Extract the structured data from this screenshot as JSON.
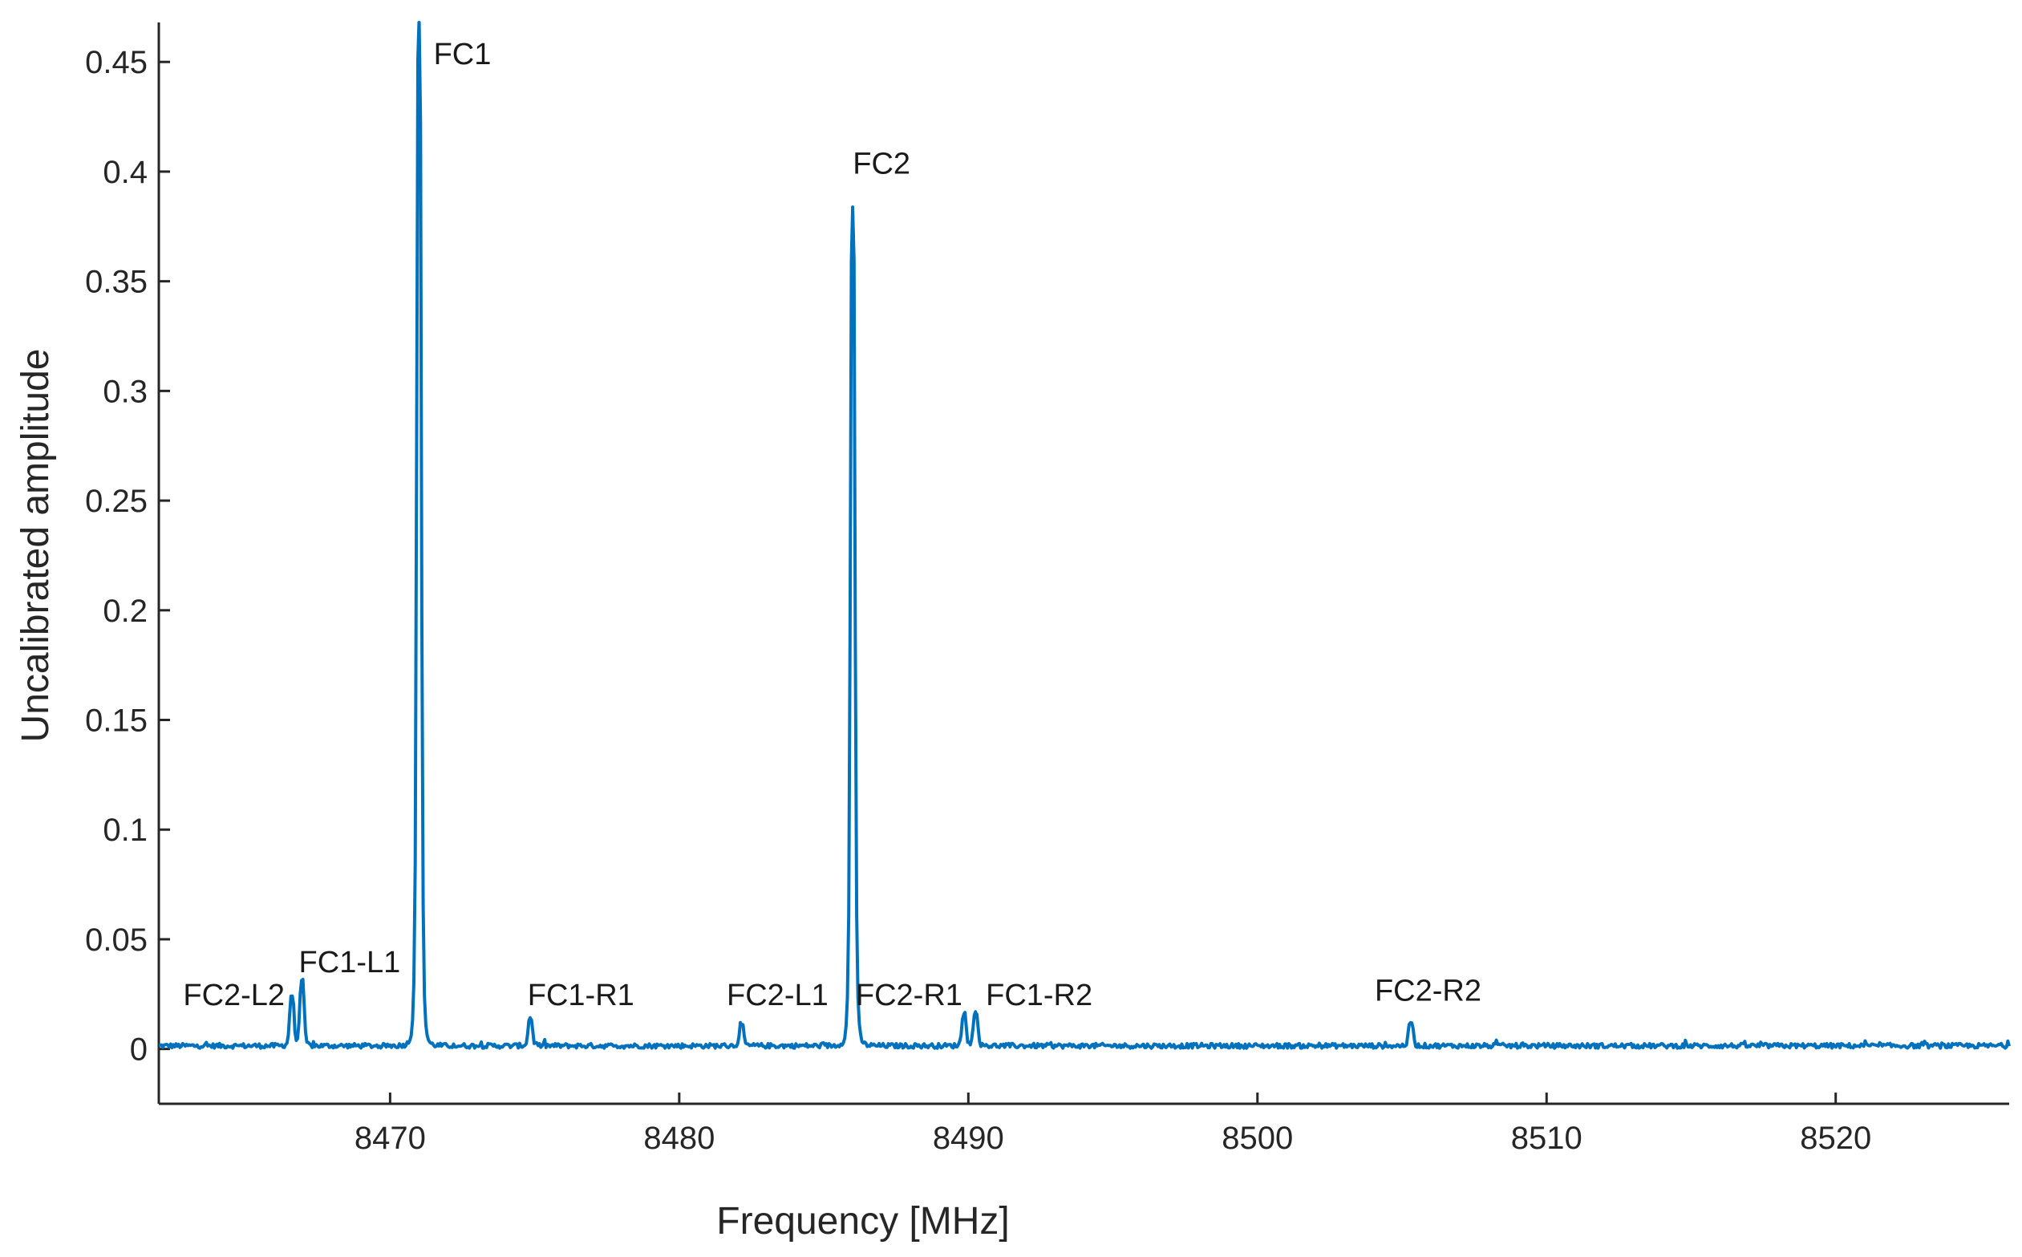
{
  "chart_data": {
    "type": "line",
    "title": "",
    "xlabel": "Frequency [MHz]",
    "ylabel": "Uncalibrated amplitude",
    "xlim": [
      8462,
      8526
    ],
    "ylim": [
      -0.025,
      0.468
    ],
    "x_ticks": [
      8470,
      8480,
      8490,
      8500,
      8510,
      8520
    ],
    "y_ticks": [
      0,
      0.05,
      0.1,
      0.15,
      0.2,
      0.25,
      0.3,
      0.35,
      0.4,
      0.45
    ],
    "x_tick_labels": [
      "8470",
      "8480",
      "8490",
      "8500",
      "8510",
      "8520"
    ],
    "y_tick_labels": [
      "0",
      "0.05",
      "0.1",
      "0.15",
      "0.2",
      "0.25",
      "0.3",
      "0.35",
      "0.4",
      "0.45"
    ],
    "grid": false,
    "line_color": "#0072BD",
    "baseline": 0.001,
    "peaks": [
      {
        "x": 8466.6,
        "y": 0.024
      },
      {
        "x": 8466.95,
        "y": 0.031
      },
      {
        "x": 8471.0,
        "y": 0.468
      },
      {
        "x": 8474.85,
        "y": 0.014
      },
      {
        "x": 8482.15,
        "y": 0.011
      },
      {
        "x": 8486.0,
        "y": 0.383
      },
      {
        "x": 8489.85,
        "y": 0.016
      },
      {
        "x": 8490.25,
        "y": 0.017
      },
      {
        "x": 8505.3,
        "y": 0.012
      }
    ],
    "annotations": [
      {
        "text": "FC2-L2",
        "x": 8464.6,
        "y": 0.02
      },
      {
        "text": "FC1-L1",
        "x": 8468.6,
        "y": 0.035
      },
      {
        "text": "FC1",
        "x": 8472.5,
        "y": 0.449
      },
      {
        "text": "FC1-R1",
        "x": 8476.6,
        "y": 0.02
      },
      {
        "text": "FC2-L1",
        "x": 8483.4,
        "y": 0.02
      },
      {
        "text": "FC2",
        "x": 8487.0,
        "y": 0.399
      },
      {
        "text": "FC2-R1",
        "x": 8487.95,
        "y": 0.02
      },
      {
        "text": "FC1-R2",
        "x": 8492.45,
        "y": 0.02
      },
      {
        "text": "FC2-R2",
        "x": 8505.9,
        "y": 0.022
      }
    ]
  }
}
